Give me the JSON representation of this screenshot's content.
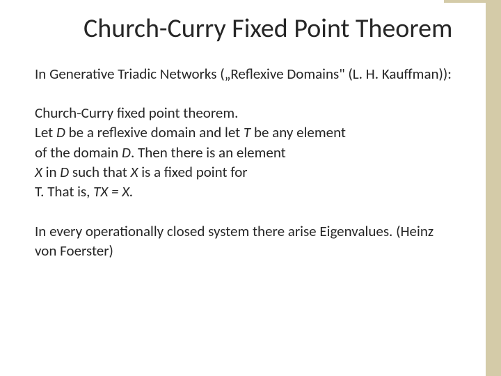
{
  "colors": {
    "accent": "#d4cba8",
    "text": "#262626",
    "background": "#ffffff"
  },
  "typography": {
    "title_fontsize": 38,
    "body_fontsize": 21,
    "font_family": "Calibri"
  },
  "title": "Church-Curry Fixed Point Theorem",
  "intro": "In Generative Triadic Networks („Reflexive Domains\" (L. H. Kauffman)):",
  "theorem": {
    "line1": "Church-Curry fixed point theorem.",
    "line2_pre": "Let ",
    "line2_D": "D",
    "line2_mid": " be a reflexive domain and let ",
    "line2_T": "T",
    "line2_post": " be any element",
    "line3_pre": "of the domain ",
    "line3_D": "D",
    "line3_post": ". Then there is an element",
    "line4_X": "X",
    "line4_mid": " in ",
    "line4_D": "D",
    "line4_mid2": " such that ",
    "line4_X2": "X",
    "line4_post": " is a fixed point for",
    "line5_pre": "T. That is, ",
    "line5_eq": "TX = X."
  },
  "closing": "In every operationally closed system there arise Eigenvalues. (Heinz von Foerster)"
}
